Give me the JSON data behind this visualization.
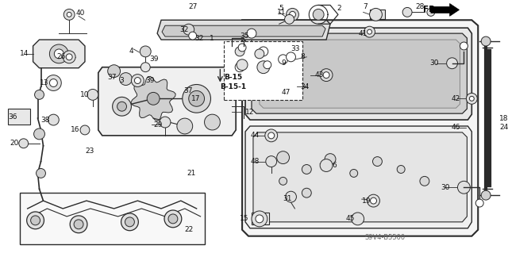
{
  "bg_color": "#ffffff",
  "diagram_code": "S9V4-B5500",
  "lc": "#2a2a2a",
  "tc": "#111111",
  "fs": 6.5,
  "fr_text": "FR.",
  "b15_text": "B-15",
  "b151_text": "B-15-1"
}
